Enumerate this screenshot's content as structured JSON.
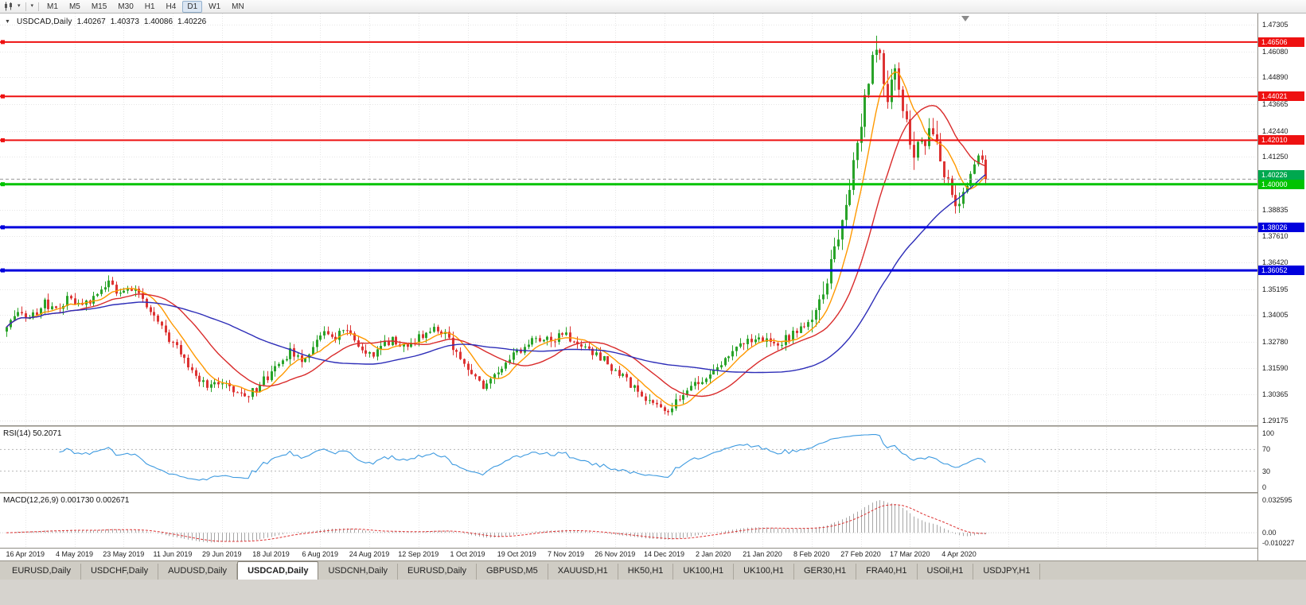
{
  "toolbar": {
    "timeframes": [
      {
        "label": "M1"
      },
      {
        "label": "M5"
      },
      {
        "label": "M15"
      },
      {
        "label": "M30"
      },
      {
        "label": "H1"
      },
      {
        "label": "H4"
      },
      {
        "label": "D1",
        "active": true
      },
      {
        "label": "W1"
      },
      {
        "label": "MN"
      }
    ]
  },
  "header": {
    "expand_icon": "▼",
    "symbol": "USDCAD,Daily",
    "ohlc": {
      "open": "1.40267",
      "high": "1.40373",
      "low": "1.40086",
      "close": "1.40226"
    }
  },
  "chart_data": {
    "type": "candlestick",
    "symbol": "USDCAD",
    "timeframe": "Daily",
    "ohlc_display": [
      1.40267,
      1.40373,
      1.40086,
      1.40226
    ],
    "ylim": [
      1.29175,
      1.47305
    ],
    "grid": true,
    "price_ticks": [
      "1.47305",
      "1.46080",
      "1.44890",
      "1.43665",
      "1.42440",
      "1.41250",
      "1.40025",
      "1.38835",
      "1.37610",
      "1.36420",
      "1.35195",
      "1.34005",
      "1.32780",
      "1.31590",
      "1.30365",
      "1.29175"
    ],
    "date_ticks": [
      "16 Apr 2019",
      "4 May 2019",
      "23 May 2019",
      "11 Jun 2019",
      "29 Jun 2019",
      "18 Jul 2019",
      "6 Aug 2019",
      "24 Aug 2019",
      "12 Sep 2019",
      "1 Oct 2019",
      "19 Oct 2019",
      "7 Nov 2019",
      "26 Nov 2019",
      "14 Dec 2019",
      "2 Jan 2020",
      "21 Jan 2020",
      "8 Feb 2020",
      "27 Feb 2020",
      "17 Mar 2020",
      "4 Apr 2020"
    ],
    "horizontal_lines": [
      {
        "price": 1.46506,
        "label": "1.46506",
        "color": "#ee1111",
        "width": 2
      },
      {
        "price": 1.44021,
        "label": "1.44021",
        "color": "#ee1111",
        "width": 2
      },
      {
        "price": 1.4201,
        "label": "1.42010",
        "color": "#ee1111",
        "width": 2
      },
      {
        "price": 1.4,
        "label": "1.40000",
        "color": "#00c300",
        "width": 3
      },
      {
        "price": 1.38026,
        "label": "1.38026",
        "color": "#0000dd",
        "width": 3
      },
      {
        "price": 1.36052,
        "label": "1.36052",
        "color": "#0000dd",
        "width": 3
      }
    ],
    "bid": {
      "price": 1.40226,
      "label": "1.40226",
      "color": "#00a84f"
    },
    "candles": {
      "count": 260,
      "seed": 20200417,
      "up_color": "#29a329",
      "down_color": "#dd3333",
      "close_anchors": [
        [
          0,
          1.3345
        ],
        [
          3,
          1.3415
        ],
        [
          6,
          1.338
        ],
        [
          10,
          1.3455
        ],
        [
          13,
          1.343
        ],
        [
          16,
          1.347
        ],
        [
          20,
          1.3445
        ],
        [
          24,
          1.3495
        ],
        [
          27,
          1.354
        ],
        [
          30,
          1.3495
        ],
        [
          33,
          1.352
        ],
        [
          36,
          1.347
        ],
        [
          39,
          1.339
        ],
        [
          42,
          1.331
        ],
        [
          45,
          1.325
        ],
        [
          48,
          1.317
        ],
        [
          51,
          1.311
        ],
        [
          54,
          1.3075
        ],
        [
          57,
          1.3095
        ],
        [
          60,
          1.3045
        ],
        [
          63,
          1.302
        ],
        [
          66,
          1.306
        ],
        [
          69,
          1.312
        ],
        [
          72,
          1.3175
        ],
        [
          75,
          1.3235
        ],
        [
          78,
          1.3195
        ],
        [
          81,
          1.326
        ],
        [
          84,
          1.332
        ],
        [
          87,
          1.3305
        ],
        [
          90,
          1.333
        ],
        [
          93,
          1.3255
        ],
        [
          96,
          1.3215
        ],
        [
          99,
          1.3255
        ],
        [
          102,
          1.329
        ],
        [
          105,
          1.326
        ],
        [
          108,
          1.329
        ],
        [
          111,
          1.3325
        ],
        [
          114,
          1.334
        ],
        [
          117,
          1.329
        ],
        [
          120,
          1.32
        ],
        [
          123,
          1.3125
        ],
        [
          126,
          1.307
        ],
        [
          129,
          1.311
        ],
        [
          132,
          1.3165
        ],
        [
          135,
          1.3235
        ],
        [
          138,
          1.327
        ],
        [
          141,
          1.33
        ],
        [
          144,
          1.328
        ],
        [
          147,
          1.331
        ],
        [
          150,
          1.329
        ],
        [
          153,
          1.3255
        ],
        [
          156,
          1.322
        ],
        [
          159,
          1.318
        ],
        [
          162,
          1.313
        ],
        [
          165,
          1.308
        ],
        [
          168,
          1.3025
        ],
        [
          171,
          1.2985
        ],
        [
          174,
          1.2958
        ],
        [
          177,
          1.2995
        ],
        [
          180,
          1.3045
        ],
        [
          183,
          1.309
        ],
        [
          186,
          1.3135
        ],
        [
          189,
          1.3185
        ],
        [
          192,
          1.3235
        ],
        [
          195,
          1.327
        ],
        [
          198,
          1.33
        ],
        [
          201,
          1.329
        ],
        [
          204,
          1.327
        ],
        [
          207,
          1.33
        ],
        [
          210,
          1.3335
        ],
        [
          213,
          1.3395
        ],
        [
          215,
          1.3465
        ],
        [
          217,
          1.3565
        ],
        [
          219,
          1.369
        ],
        [
          221,
          1.383
        ],
        [
          223,
          1.4
        ],
        [
          225,
          1.419
        ],
        [
          227,
          1.439
        ],
        [
          229,
          1.456
        ],
        [
          231,
          1.4635
        ],
        [
          232,
          1.447
        ],
        [
          233,
          1.439
        ],
        [
          234,
          1.4465
        ],
        [
          235,
          1.4505
        ],
        [
          236,
          1.443
        ],
        [
          237,
          1.4355
        ],
        [
          238,
          1.4275
        ],
        [
          239,
          1.419
        ],
        [
          240,
          1.4125
        ],
        [
          241,
          1.4185
        ],
        [
          242,
          1.4235
        ],
        [
          243,
          1.421
        ],
        [
          244,
          1.4262
        ],
        [
          245,
          1.4228
        ],
        [
          246,
          1.416
        ],
        [
          247,
          1.4098
        ],
        [
          248,
          1.404
        ],
        [
          249,
          1.399
        ],
        [
          250,
          1.3942
        ],
        [
          251,
          1.3905
        ],
        [
          252,
          1.3935
        ],
        [
          253,
          1.3975
        ],
        [
          254,
          1.4012
        ],
        [
          255,
          1.406
        ],
        [
          256,
          1.4108
        ],
        [
          257,
          1.415
        ],
        [
          258,
          1.4118
        ],
        [
          259,
          1.40226
        ]
      ]
    },
    "moving_averages": [
      {
        "period": 8,
        "type": "sma",
        "color": "#ff9900"
      },
      {
        "period": 20,
        "type": "sma",
        "color": "#d92b2b"
      },
      {
        "period": 50,
        "type": "sma",
        "color": "#2d2db8"
      }
    ],
    "indicators": [
      {
        "name": "RSI",
        "label": "RSI(14) 50.2071",
        "period": 14,
        "value": 50.2071,
        "levels": [
          100,
          70,
          30,
          0
        ],
        "level_labels": [
          "100",
          "70",
          "30",
          "0"
        ],
        "color": "#3d9ae0"
      },
      {
        "name": "MACD",
        "label": "MACD(12,26,9) 0.001730 0.002671",
        "fast": 12,
        "slow": 26,
        "signal": 9,
        "values": [
          0.00173,
          0.002671
        ],
        "axis_labels": [
          "0.032595",
          "0.00",
          "-0.010227"
        ],
        "axis_values": [
          0.032595,
          0,
          -0.010227
        ],
        "histogram_color": "#a6a6a6",
        "signal_color": "#dd3333"
      }
    ]
  },
  "tabs": {
    "items": [
      "EURUSD,Daily",
      "USDCHF,Daily",
      "AUDUSD,Daily",
      "USDCAD,Daily",
      "USDCNH,Daily",
      "EURUSD,Daily",
      "GBPUSD,M5",
      "XAUUSD,H1",
      "HK50,H1",
      "UK100,H1",
      "UK100,H1",
      "GER30,H1",
      "FRA40,H1",
      "USOil,H1",
      "USDJPY,H1"
    ],
    "active_index": 3
  }
}
